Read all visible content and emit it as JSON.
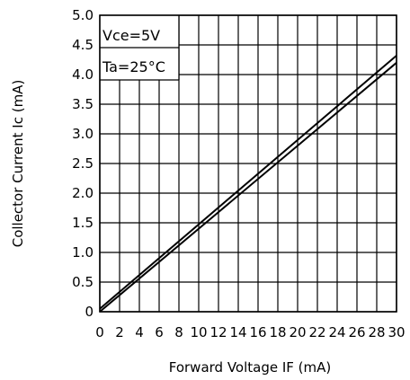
{
  "chart_data": {
    "type": "line",
    "xlabel": "Forward Voltage  IF  (mA)",
    "ylabel": "Collector Current  Ic   (mA)",
    "xlim": [
      0,
      30
    ],
    "ylim": [
      0,
      5.0
    ],
    "x_ticks": [
      "0",
      "2",
      "4",
      "6",
      "8",
      "10",
      "12",
      "14",
      "16",
      "18",
      "20",
      "22",
      "24",
      "26",
      "28",
      "30"
    ],
    "y_ticks": [
      "0",
      "0.5",
      "1.0",
      "1.5",
      "2.0",
      "2.5",
      "3.0",
      "3.5",
      "4.0",
      "4.5",
      "5.0"
    ],
    "grid": true,
    "annotations": [
      "Vce=5V",
      "Ta=25°C"
    ],
    "series": [
      {
        "x": [
          0,
          30
        ],
        "y": [
          0.05,
          4.32
        ]
      },
      {
        "x": [
          0,
          30
        ],
        "y": [
          0.0,
          4.2
        ]
      }
    ]
  }
}
